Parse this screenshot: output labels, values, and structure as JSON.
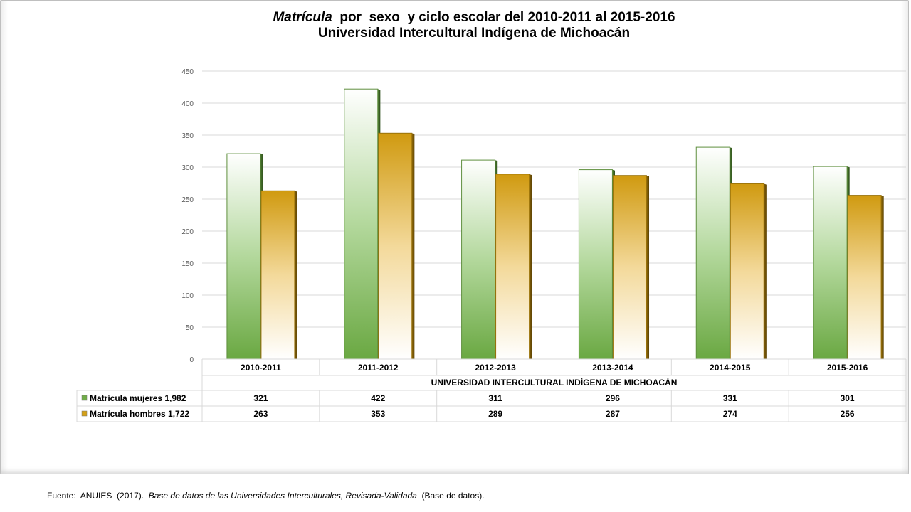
{
  "title": {
    "line1_italic": "Matrícula",
    "line1_rest": "  por  sexo  y ciclo escolar del 2010-2011 al 2015-2016",
    "line2": "Universidad Intercultural Indígena de Michoacán"
  },
  "source": {
    "prefix": "Fuente:  ANUIES  (2017).  ",
    "italic": "Base de datos de las Universidades  Interculturales, Revisada-Validada",
    "suffix": "  (Base de datos)."
  },
  "chart_data": {
    "type": "bar",
    "title": "Matrícula por sexo y ciclo escolar del 2010-2011 al 2015-2016 Universidad Intercultural Indígena de Michoacán",
    "categories": [
      "2010-2011",
      "2011-2012",
      "2012-2013",
      "2013-2014",
      "2014-2015",
      "2015-2016"
    ],
    "category_group_label": "UNIVERSIDAD INTERCULTURAL INDÍGENA DE MICHOACÁN",
    "series": [
      {
        "name": "Matrícula mujeres 1,982",
        "values": [
          321,
          422,
          311,
          296,
          331,
          301
        ],
        "color": "#70ad47"
      },
      {
        "name": "Matrícula hombres 1,722",
        "values": [
          263,
          353,
          289,
          287,
          274,
          256
        ],
        "color": "#d4a017"
      }
    ],
    "ylim": [
      0,
      450
    ],
    "y_ticks": [
      0,
      50,
      100,
      150,
      200,
      250,
      300,
      350,
      400,
      450
    ],
    "grid": true,
    "legend": "data-table"
  }
}
